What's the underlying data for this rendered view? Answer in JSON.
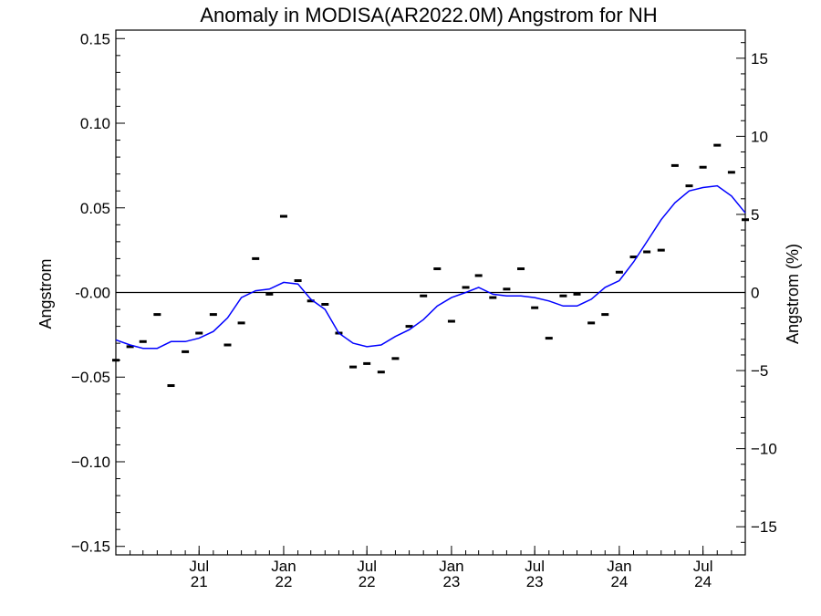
{
  "chart_data": {
    "type": "line",
    "title": "Anomaly in MODISA(AR2022.0M) Angstrom for NH",
    "ylabel": "Angstrom",
    "y2label": "Angstrom (%)",
    "xlabel": "",
    "ylim": [
      -0.155,
      0.155
    ],
    "y2lim": [
      -16.8,
      16.8
    ],
    "yticks": [
      {
        "value": 0.15,
        "label": "0.15"
      },
      {
        "value": 0.1,
        "label": "0.10"
      },
      {
        "value": 0.05,
        "label": "0.05"
      },
      {
        "value": 0.0,
        "label": "-0.00"
      },
      {
        "value": -0.05,
        "label": "−0.05"
      },
      {
        "value": -0.1,
        "label": "−0.10"
      },
      {
        "value": -0.15,
        "label": "−0.15"
      }
    ],
    "y2ticks": [
      {
        "value": 15,
        "label": "15"
      },
      {
        "value": 10,
        "label": "10"
      },
      {
        "value": 5,
        "label": "5"
      },
      {
        "value": 0,
        "label": "0"
      },
      {
        "value": -5,
        "label": "−5"
      },
      {
        "value": -10,
        "label": "−10"
      },
      {
        "value": -15,
        "label": "−15"
      }
    ],
    "xlim": [
      "2021-01-15",
      "2024-10-15"
    ],
    "xticks": [
      {
        "date": "2021-07-15",
        "line1": "Jul",
        "line2": "21"
      },
      {
        "date": "2022-01-15",
        "line1": "Jan",
        "line2": "22"
      },
      {
        "date": "2022-07-15",
        "line1": "Jul",
        "line2": "22"
      },
      {
        "date": "2023-01-15",
        "line1": "Jan",
        "line2": "23"
      },
      {
        "date": "2023-07-15",
        "line1": "Jul",
        "line2": "23"
      },
      {
        "date": "2024-01-15",
        "line1": "Jan",
        "line2": "24"
      },
      {
        "date": "2024-07-15",
        "line1": "Jul",
        "line2": "24"
      }
    ],
    "grid": false,
    "zero_line": true,
    "series": [
      {
        "style": "dash-markers",
        "color": "#000000",
        "points": [
          {
            "x": "2021-01-15",
            "y": -0.04
          },
          {
            "x": "2021-02-15",
            "y": -0.032
          },
          {
            "x": "2021-03-15",
            "y": -0.029
          },
          {
            "x": "2021-04-15",
            "y": -0.013
          },
          {
            "x": "2021-05-15",
            "y": -0.055
          },
          {
            "x": "2021-06-15",
            "y": -0.035
          },
          {
            "x": "2021-07-15",
            "y": -0.024
          },
          {
            "x": "2021-08-15",
            "y": -0.013
          },
          {
            "x": "2021-09-15",
            "y": -0.031
          },
          {
            "x": "2021-10-15",
            "y": -0.018
          },
          {
            "x": "2021-11-15",
            "y": 0.02
          },
          {
            "x": "2021-12-15",
            "y": -0.001
          },
          {
            "x": "2022-01-15",
            "y": 0.045
          },
          {
            "x": "2022-02-15",
            "y": 0.007
          },
          {
            "x": "2022-03-15",
            "y": -0.005
          },
          {
            "x": "2022-04-15",
            "y": -0.007
          },
          {
            "x": "2022-05-15",
            "y": -0.024
          },
          {
            "x": "2022-06-15",
            "y": -0.044
          },
          {
            "x": "2022-07-15",
            "y": -0.042
          },
          {
            "x": "2022-08-15",
            "y": -0.047
          },
          {
            "x": "2022-09-15",
            "y": -0.039
          },
          {
            "x": "2022-10-15",
            "y": -0.02
          },
          {
            "x": "2022-11-15",
            "y": -0.002
          },
          {
            "x": "2022-12-15",
            "y": 0.014
          },
          {
            "x": "2023-01-15",
            "y": -0.017
          },
          {
            "x": "2023-02-15",
            "y": 0.003
          },
          {
            "x": "2023-03-15",
            "y": 0.01
          },
          {
            "x": "2023-04-15",
            "y": -0.003
          },
          {
            "x": "2023-05-15",
            "y": 0.002
          },
          {
            "x": "2023-06-15",
            "y": 0.014
          },
          {
            "x": "2023-07-15",
            "y": -0.009
          },
          {
            "x": "2023-08-15",
            "y": -0.027
          },
          {
            "x": "2023-09-15",
            "y": -0.002
          },
          {
            "x": "2023-10-15",
            "y": -0.001
          },
          {
            "x": "2023-11-15",
            "y": -0.018
          },
          {
            "x": "2023-12-15",
            "y": -0.013
          },
          {
            "x": "2024-01-15",
            "y": 0.012
          },
          {
            "x": "2024-02-15",
            "y": 0.021
          },
          {
            "x": "2024-03-15",
            "y": 0.024
          },
          {
            "x": "2024-04-15",
            "y": 0.025
          },
          {
            "x": "2024-05-15",
            "y": 0.075
          },
          {
            "x": "2024-06-15",
            "y": 0.063
          },
          {
            "x": "2024-07-15",
            "y": 0.074
          },
          {
            "x": "2024-08-15",
            "y": 0.087
          },
          {
            "x": "2024-09-15",
            "y": 0.071
          },
          {
            "x": "2024-10-15",
            "y": 0.043
          }
        ]
      },
      {
        "style": "line",
        "color": "#0000ff",
        "points": [
          {
            "x": "2021-01-15",
            "y": -0.028
          },
          {
            "x": "2021-02-15",
            "y": -0.031
          },
          {
            "x": "2021-03-15",
            "y": -0.033
          },
          {
            "x": "2021-04-15",
            "y": -0.033
          },
          {
            "x": "2021-05-15",
            "y": -0.029
          },
          {
            "x": "2021-06-15",
            "y": -0.029
          },
          {
            "x": "2021-07-15",
            "y": -0.027
          },
          {
            "x": "2021-08-15",
            "y": -0.023
          },
          {
            "x": "2021-09-15",
            "y": -0.015
          },
          {
            "x": "2021-10-15",
            "y": -0.003
          },
          {
            "x": "2021-11-15",
            "y": 0.001
          },
          {
            "x": "2021-12-15",
            "y": 0.002
          },
          {
            "x": "2022-01-15",
            "y": 0.006
          },
          {
            "x": "2022-02-15",
            "y": 0.005
          },
          {
            "x": "2022-03-15",
            "y": -0.004
          },
          {
            "x": "2022-04-15",
            "y": -0.01
          },
          {
            "x": "2022-05-15",
            "y": -0.024
          },
          {
            "x": "2022-06-15",
            "y": -0.03
          },
          {
            "x": "2022-07-15",
            "y": -0.032
          },
          {
            "x": "2022-08-15",
            "y": -0.031
          },
          {
            "x": "2022-09-15",
            "y": -0.026
          },
          {
            "x": "2022-10-15",
            "y": -0.022
          },
          {
            "x": "2022-11-15",
            "y": -0.016
          },
          {
            "x": "2022-12-15",
            "y": -0.008
          },
          {
            "x": "2023-01-15",
            "y": -0.003
          },
          {
            "x": "2023-02-15",
            "y": 0.0
          },
          {
            "x": "2023-03-15",
            "y": 0.003
          },
          {
            "x": "2023-04-15",
            "y": -0.001
          },
          {
            "x": "2023-05-15",
            "y": -0.002
          },
          {
            "x": "2023-06-15",
            "y": -0.002
          },
          {
            "x": "2023-07-15",
            "y": -0.003
          },
          {
            "x": "2023-08-15",
            "y": -0.005
          },
          {
            "x": "2023-09-15",
            "y": -0.008
          },
          {
            "x": "2023-10-15",
            "y": -0.008
          },
          {
            "x": "2023-11-15",
            "y": -0.004
          },
          {
            "x": "2023-12-15",
            "y": 0.003
          },
          {
            "x": "2024-01-15",
            "y": 0.007
          },
          {
            "x": "2024-02-15",
            "y": 0.018
          },
          {
            "x": "2024-03-15",
            "y": 0.03
          },
          {
            "x": "2024-04-15",
            "y": 0.043
          },
          {
            "x": "2024-05-15",
            "y": 0.053
          },
          {
            "x": "2024-06-15",
            "y": 0.06
          },
          {
            "x": "2024-07-15",
            "y": 0.062
          },
          {
            "x": "2024-08-15",
            "y": 0.063
          },
          {
            "x": "2024-09-15",
            "y": 0.057
          },
          {
            "x": "2024-10-15",
            "y": 0.047
          }
        ]
      }
    ]
  }
}
